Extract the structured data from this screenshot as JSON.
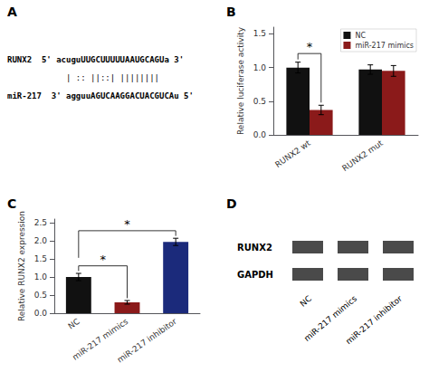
{
  "chart_data": [
    {
      "type": "text",
      "title": "A",
      "annotations": [
        "RUNX2  5' acuguUUGCUUUUUAAUGCAGUa 3'",
        "            | :: ||::| ||||||||",
        "miR-217  3' agguuAGUCAAGGACUACGUCAu 5'"
      ]
    },
    {
      "type": "bar",
      "title": "B",
      "ylabel": "Relative luciferase activity",
      "categories": [
        "RUNX2 wt",
        "RUNX2 mut"
      ],
      "series": [
        {
          "name": "NC",
          "color": "#111111",
          "values": [
            1.0,
            0.97
          ],
          "errors": [
            0.08,
            0.07
          ]
        },
        {
          "name": "miR-217 mimics",
          "color": "#8b1a1a",
          "values": [
            0.37,
            0.95
          ],
          "errors": [
            0.07,
            0.08
          ]
        }
      ],
      "ylim": [
        0,
        1.6
      ],
      "yticks": [
        {
          "value": 0,
          "label": "0.0"
        },
        0.5,
        {
          "value": 1,
          "label": "1.0"
        },
        1.5
      ],
      "grid": false,
      "legend": "upper right",
      "annotations": [
        {
          "text": "*",
          "category": "RUNX2 wt",
          "between": [
            "NC",
            "miR-217 mimics"
          ]
        }
      ]
    },
    {
      "type": "bar",
      "title": "C",
      "ylabel": "Relative RUNX2 expression",
      "categories": [
        "NC",
        "miR-217 mimics",
        "miR-217 inhibitor"
      ],
      "values": [
        1.0,
        0.3,
        1.97
      ],
      "errors": [
        0.1,
        0.05,
        0.1
      ],
      "colors": [
        "#111111",
        "#8b1a1a",
        "#1b2a7b"
      ],
      "ylim": [
        0,
        2.6
      ],
      "yticks": [
        {
          "value": 0,
          "label": "0.0"
        },
        0.5,
        {
          "value": 1,
          "label": "1.0"
        },
        1.5,
        {
          "value": 2,
          "label": "2.0"
        },
        2.5
      ],
      "grid": false,
      "annotations": [
        {
          "text": "*",
          "between": [
            "NC",
            "miR-217 mimics"
          ]
        },
        {
          "text": "*",
          "between": [
            "NC",
            "miR-217 inhibitor"
          ]
        }
      ]
    },
    {
      "type": "blot",
      "title": "D",
      "annotations": [
        "RUNX2",
        "GAPDH"
      ],
      "categories": [
        "NC",
        "miR-217 mimics",
        "miR-217 inhibitor"
      ],
      "color": "#4a4a4a"
    }
  ]
}
